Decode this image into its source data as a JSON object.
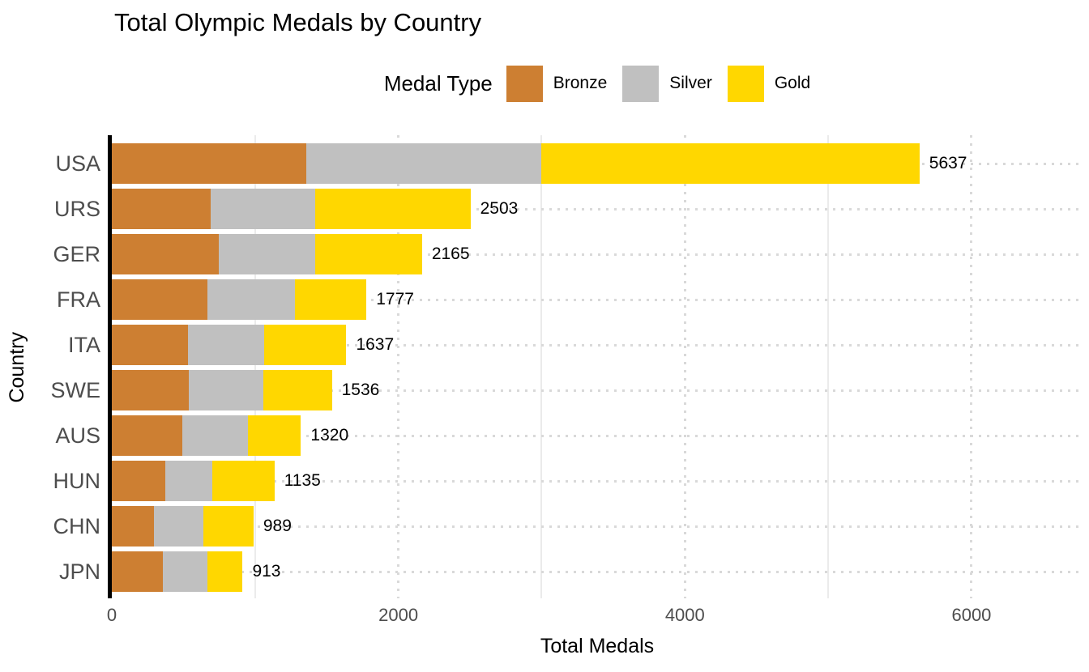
{
  "title": "Total Olympic Medals by Country",
  "legend": {
    "title": "Medal Type",
    "items": [
      {
        "label": "Bronze",
        "color": "#cd7f32"
      },
      {
        "label": "Silver",
        "color": "#c0c0c0"
      },
      {
        "label": "Gold",
        "color": "#ffd700"
      }
    ]
  },
  "axes": {
    "x_title": "Total Medals",
    "y_title": "Country"
  },
  "colors": {
    "bronze": "#cd7f32",
    "silver": "#c0c0c0",
    "gold": "#ffd700",
    "axis_text": "#4d4d4d",
    "text": "#000000",
    "grid_dotted": "#d9d9d9",
    "grid_minor": "#ebebeb",
    "background": "#ffffff"
  },
  "chart_data": {
    "type": "bar",
    "orientation": "horizontal",
    "stacked": true,
    "title": "Total Olympic Medals by Country",
    "xlabel": "Total Medals",
    "ylabel": "Country",
    "legend_title": "Medal Type",
    "legend_position": "top",
    "categories": [
      "USA",
      "URS",
      "GER",
      "FRA",
      "ITA",
      "SWE",
      "AUS",
      "HUN",
      "CHN",
      "JPN"
    ],
    "series": [
      {
        "name": "Bronze",
        "color": "#cd7f32",
        "values": [
          1358,
          689,
          746,
          666,
          531,
          535,
          493,
          371,
          292,
          357
        ]
      },
      {
        "name": "Silver",
        "color": "#c0c0c0",
        "values": [
          1641,
          732,
          674,
          610,
          531,
          522,
          459,
          332,
          347,
          309
        ]
      },
      {
        "name": "Gold",
        "color": "#ffd700",
        "values": [
          2638,
          1082,
          745,
          501,
          575,
          479,
          368,
          432,
          350,
          247
        ]
      }
    ],
    "totals": [
      5637,
      2503,
      2165,
      1777,
      1637,
      1536,
      1320,
      1135,
      989,
      913
    ],
    "x_ticks": [
      0,
      2000,
      4000,
      6000
    ],
    "x_minor_ticks": [
      1000,
      3000,
      5000
    ],
    "xlim": [
      0,
      6775
    ],
    "grid": "dotted-major"
  }
}
